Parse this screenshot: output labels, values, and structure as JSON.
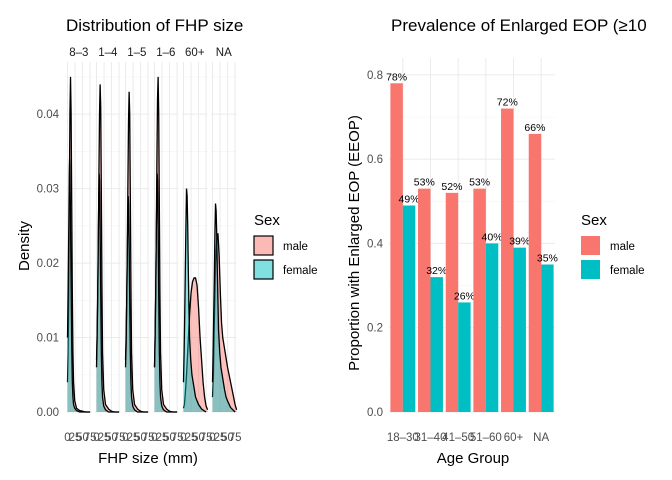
{
  "chart_data": [
    {
      "type": "area",
      "title": "Distribution of FHP size",
      "xlabel": "FHP size (mm)",
      "ylabel": "Density",
      "ylim": [
        0,
        0.047
      ],
      "yticks": [
        "0.00",
        "0.01",
        "0.02",
        "0.03",
        "0.04"
      ],
      "ytick_values": [
        0,
        0.01,
        0.02,
        0.03,
        0.04
      ],
      "xticks_per_panel": [
        "0",
        "25",
        "50",
        "75"
      ],
      "xtick_values": [
        0,
        25,
        50,
        75
      ],
      "xlim": [
        -5,
        80
      ],
      "facets": [
        "8–3",
        "1–4",
        "1–5",
        "1–6",
        "60+",
        "NA"
      ],
      "legend": {
        "title": "Sex",
        "entries": [
          "male",
          "female"
        ],
        "colors": [
          "#F8766D",
          "#00BFC4"
        ],
        "placement": "right"
      },
      "series": [
        {
          "name": "male",
          "color": "#F8766D",
          "panels": [
            {
              "peak_x": 10,
              "peak_density": 0.045,
              "x": [
                0,
                2,
                4,
                6,
                8,
                10,
                12,
                14,
                16,
                18,
                20,
                24,
                30,
                40,
                50,
                60,
                75
              ],
              "y": [
                0.004,
                0.008,
                0.016,
                0.028,
                0.04,
                0.045,
                0.04,
                0.028,
                0.016,
                0.008,
                0.004,
                0.0015,
                0.0005,
                0.0002,
                0.0001,
                0,
                0
              ]
            },
            {
              "peak_x": 14,
              "peak_density": 0.044,
              "x": [
                0,
                2,
                4,
                6,
                8,
                10,
                12,
                14,
                16,
                18,
                20,
                24,
                30,
                40,
                50,
                60,
                75
              ],
              "y": [
                0.007,
                0.01,
                0.015,
                0.022,
                0.032,
                0.04,
                0.044,
                0.041,
                0.03,
                0.017,
                0.008,
                0.003,
                0.001,
                0.0004,
                0.0001,
                0,
                0
              ]
            },
            {
              "peak_x": 14,
              "peak_density": 0.043,
              "x": [
                0,
                2,
                4,
                6,
                8,
                10,
                12,
                14,
                16,
                18,
                20,
                24,
                30,
                40,
                50,
                60,
                75
              ],
              "y": [
                0.007,
                0.01,
                0.015,
                0.022,
                0.031,
                0.039,
                0.043,
                0.04,
                0.029,
                0.017,
                0.008,
                0.003,
                0.001,
                0.0004,
                0.0001,
                0,
                0
              ]
            },
            {
              "peak_x": 12,
              "peak_density": 0.045,
              "x": [
                0,
                2,
                4,
                6,
                8,
                10,
                12,
                14,
                16,
                18,
                20,
                24,
                30,
                40,
                50,
                60,
                75
              ],
              "y": [
                0.006,
                0.01,
                0.016,
                0.024,
                0.034,
                0.042,
                0.045,
                0.04,
                0.028,
                0.016,
                0.008,
                0.003,
                0.001,
                0.0004,
                0.0001,
                0,
                0
              ]
            },
            {
              "peak_x": 40,
              "peak_density": 0.018,
              "x": [
                0,
                3,
                6,
                10,
                15,
                20,
                25,
                30,
                35,
                40,
                45,
                50,
                55,
                60,
                65,
                70,
                75,
                80
              ],
              "y": [
                0.0005,
                0.001,
                0.0025,
                0.005,
                0.009,
                0.013,
                0.016,
                0.0175,
                0.018,
                0.018,
                0.017,
                0.014,
                0.01,
                0.007,
                0.004,
                0.002,
                0.0008,
                0.0003
              ]
            },
            {
              "peak_x": 18,
              "peak_density": 0.024,
              "x": [
                0,
                3,
                6,
                10,
                14,
                18,
                22,
                26,
                30,
                34,
                38,
                42,
                46,
                50,
                55,
                60,
                65,
                70,
                75,
                80
              ],
              "y": [
                0.002,
                0.005,
                0.012,
                0.02,
                0.023,
                0.024,
                0.021,
                0.016,
                0.012,
                0.01,
                0.009,
                0.008,
                0.007,
                0.006,
                0.005,
                0.004,
                0.003,
                0.002,
                0.001,
                0.0003
              ]
            }
          ]
        },
        {
          "name": "female",
          "color": "#00BFC4",
          "panels": [
            {
              "peak_x": 7,
              "peak_density": 0.034,
              "x": [
                0,
                2,
                4,
                6,
                7,
                8,
                10,
                12,
                14,
                16,
                18,
                20,
                24,
                30,
                40,
                50,
                60,
                75
              ],
              "y": [
                0.01,
                0.016,
                0.024,
                0.032,
                0.034,
                0.033,
                0.026,
                0.017,
                0.009,
                0.004,
                0.002,
                0.001,
                0.0005,
                0.0002,
                0,
                0,
                0,
                0
              ]
            },
            {
              "peak_x": 9,
              "peak_density": 0.032,
              "x": [
                0,
                2,
                4,
                6,
                8,
                9,
                10,
                12,
                14,
                16,
                18,
                20,
                24,
                30,
                40,
                50,
                60,
                75
              ],
              "y": [
                0.006,
                0.01,
                0.016,
                0.024,
                0.03,
                0.032,
                0.031,
                0.025,
                0.016,
                0.008,
                0.004,
                0.002,
                0.0008,
                0.0003,
                0,
                0,
                0,
                0
              ]
            },
            {
              "peak_x": 9,
              "peak_density": 0.029,
              "x": [
                0,
                2,
                4,
                6,
                8,
                9,
                10,
                12,
                14,
                16,
                18,
                20,
                24,
                30,
                40,
                50,
                60,
                75
              ],
              "y": [
                0.006,
                0.009,
                0.015,
                0.021,
                0.027,
                0.029,
                0.028,
                0.023,
                0.015,
                0.008,
                0.004,
                0.002,
                0.0008,
                0.0003,
                0,
                0,
                0,
                0
              ]
            },
            {
              "peak_x": 9,
              "peak_density": 0.032,
              "x": [
                0,
                2,
                4,
                6,
                8,
                9,
                10,
                12,
                14,
                16,
                18,
                20,
                24,
                30,
                40,
                50,
                60,
                75
              ],
              "y": [
                0.006,
                0.01,
                0.016,
                0.024,
                0.03,
                0.032,
                0.031,
                0.025,
                0.016,
                0.008,
                0.004,
                0.002,
                0.0008,
                0.0003,
                0,
                0,
                0,
                0
              ]
            },
            {
              "peak_x": 10,
              "peak_density": 0.03,
              "x": [
                0,
                2,
                4,
                6,
                8,
                10,
                12,
                14,
                16,
                18,
                20,
                24,
                28,
                32,
                36,
                40,
                45,
                50,
                60,
                75
              ],
              "y": [
                0.004,
                0.008,
                0.013,
                0.019,
                0.025,
                0.03,
                0.029,
                0.025,
                0.019,
                0.014,
                0.01,
                0.007,
                0.005,
                0.004,
                0.003,
                0.002,
                0.0015,
                0.001,
                0.0004,
                0
              ]
            },
            {
              "peak_x": 10,
              "peak_density": 0.028,
              "x": [
                0,
                2,
                4,
                6,
                8,
                10,
                12,
                14,
                16,
                18,
                20,
                24,
                28,
                32,
                36,
                40,
                45,
                50,
                60,
                75
              ],
              "y": [
                0.004,
                0.008,
                0.013,
                0.018,
                0.024,
                0.028,
                0.027,
                0.024,
                0.019,
                0.015,
                0.011,
                0.008,
                0.006,
                0.005,
                0.004,
                0.003,
                0.002,
                0.0015,
                0.0006,
                0
              ]
            }
          ]
        }
      ]
    },
    {
      "type": "bar",
      "title": "Prevalence of Enlarged EOP (≥10",
      "xlabel": "Age Group",
      "ylabel": "Proportion with Enlarged EOP (EEOP)",
      "ylim": [
        0,
        0.84
      ],
      "yticks": [
        "0.0",
        "0.2",
        "0.4",
        "0.6",
        "0.8"
      ],
      "ytick_values": [
        0,
        0.2,
        0.4,
        0.6,
        0.8
      ],
      "categories": [
        "18–30",
        "31–40",
        "41–50",
        "51–60",
        "60+",
        "NA"
      ],
      "legend": {
        "title": "Sex",
        "entries": [
          "male",
          "female"
        ],
        "colors": [
          "#F8766D",
          "#00BFC4"
        ],
        "placement": "right"
      },
      "series": [
        {
          "name": "male",
          "color": "#F8766D",
          "values": [
            0.78,
            0.53,
            0.52,
            0.53,
            0.72,
            0.66
          ],
          "labels": [
            "78%",
            "53%",
            "52%",
            "53%",
            "72%",
            "66%"
          ]
        },
        {
          "name": "female",
          "color": "#00BFC4",
          "values": [
            0.49,
            0.32,
            0.26,
            0.4,
            0.39,
            0.35
          ],
          "labels": [
            "49%",
            "32%",
            "26%",
            "40%",
            "39%",
            "35%"
          ]
        }
      ]
    }
  ]
}
